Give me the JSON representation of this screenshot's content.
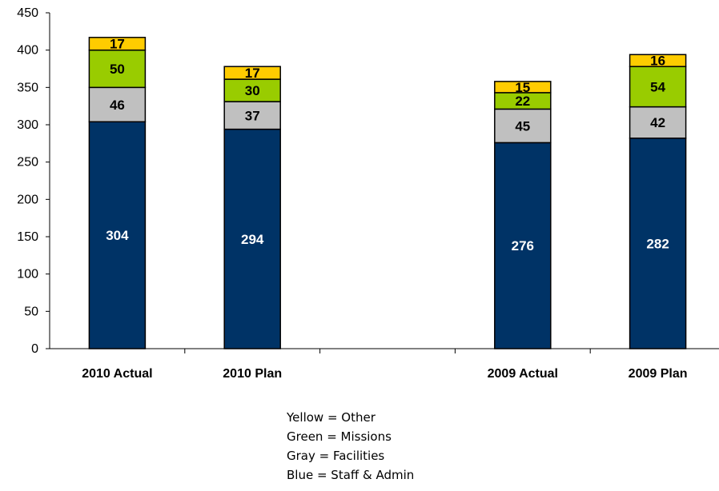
{
  "chart_data": {
    "type": "bar",
    "stacked": true,
    "categories": [
      "2010 Actual",
      "2010 Plan",
      "",
      "2009 Actual",
      "2009 Plan"
    ],
    "series": [
      {
        "key": "blue",
        "color": "#003366",
        "label_color": "#ffffff",
        "values": [
          304,
          294,
          null,
          276,
          282
        ]
      },
      {
        "key": "gray",
        "color": "#c0c0c0",
        "label_color": "#000000",
        "values": [
          46,
          37,
          null,
          45,
          42
        ]
      },
      {
        "key": "green",
        "color": "#99cc00",
        "label_color": "#000000",
        "values": [
          50,
          30,
          null,
          22,
          54
        ]
      },
      {
        "key": "yellow",
        "color": "#ffcc00",
        "label_color": "#000000",
        "values": [
          17,
          17,
          null,
          15,
          16
        ]
      }
    ],
    "ylim": [
      0,
      450
    ],
    "yticks": [
      "0",
      "50",
      "100",
      "150",
      "200",
      "250",
      "300",
      "350",
      "400",
      "450"
    ],
    "grid": false,
    "legend_placement": "bottom-center",
    "legend_lines": [
      "Yellow = Other",
      "Green = Missions",
      "Gray = Facilities",
      "Blue = Staff & Admin"
    ]
  }
}
